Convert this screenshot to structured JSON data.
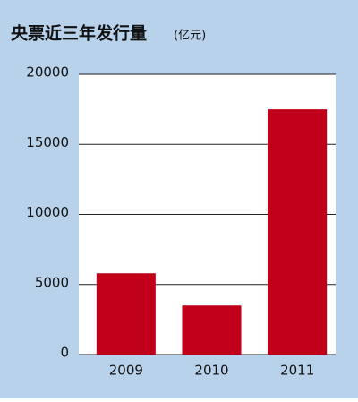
{
  "chart_data": {
    "type": "bar",
    "title": "央票近三年发行量",
    "y_label": "(亿元)",
    "categories": [
      "2009",
      "2010",
      "2011"
    ],
    "values": [
      5800,
      3500,
      17500
    ],
    "color": "#c0001a",
    "ylim": [
      0,
      20000
    ],
    "yticks": [
      0,
      5000,
      10000,
      15000,
      20000
    ],
    "grid": true
  }
}
